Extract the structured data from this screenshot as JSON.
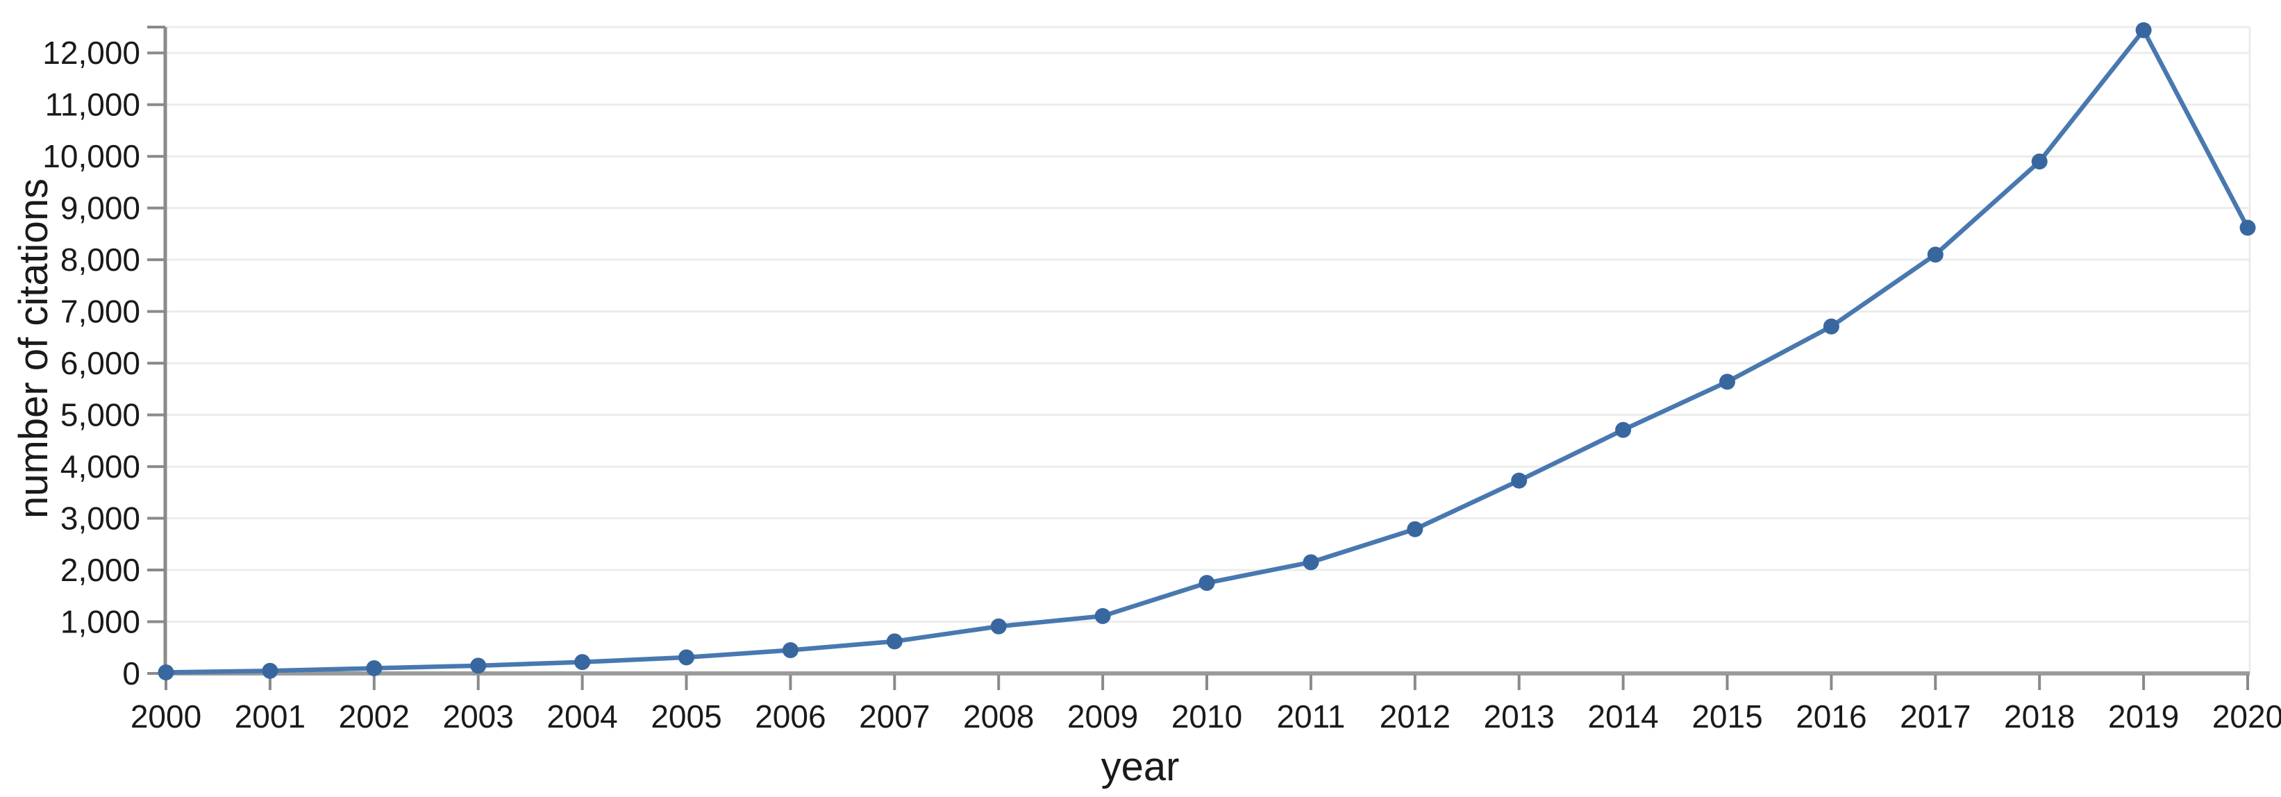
{
  "figure": {
    "background": "#ffffff"
  },
  "chart_data": {
    "type": "line",
    "title": "",
    "xlabel": "year",
    "ylabel": "number of citations",
    "x": [
      2000,
      2001,
      2002,
      2003,
      2004,
      2005,
      2006,
      2007,
      2008,
      2009,
      2010,
      2011,
      2012,
      2013,
      2014,
      2015,
      2016,
      2017,
      2018,
      2019,
      2020
    ],
    "series": [
      {
        "name": "number of citations",
        "values": [
          20,
          50,
          100,
          150,
          220,
          310,
          450,
          620,
          910,
          1110,
          1750,
          2150,
          2790,
          3730,
          4710,
          5640,
          6710,
          8100,
          9900,
          12440,
          8620
        ]
      }
    ],
    "ylim": [
      0,
      12500
    ],
    "ytick_step": 1000,
    "ytick_labeled_max": 12000,
    "top_tick_value": 12500,
    "grid": "horizontal",
    "legend": "none",
    "marker": "circle",
    "colors": {
      "line": "#4878b0",
      "marker": "#38679f",
      "spine": "#8a8a8a",
      "baseline": "#9b9b9b",
      "grid": "#ececec",
      "text": "#1a1a1a"
    }
  }
}
